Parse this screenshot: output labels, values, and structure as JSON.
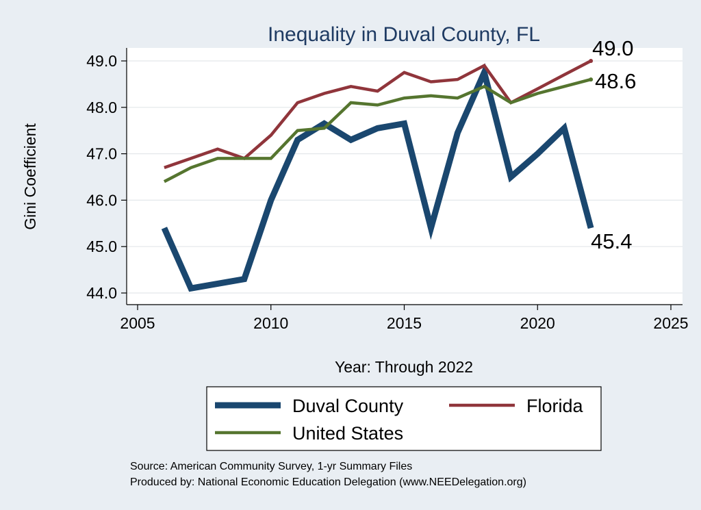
{
  "chart_data": {
    "type": "line",
    "title": "Inequality in Duval County, FL",
    "xlabel": "Year: Through 2022",
    "ylabel": "Gini Coefficient",
    "xlim": [
      2005,
      2025
    ],
    "ylim": [
      44.0,
      49.0
    ],
    "xticks": [
      "2005",
      "2010",
      "2015",
      "2020",
      "2025"
    ],
    "yticks": [
      "44.0",
      "45.0",
      "46.0",
      "47.0",
      "48.0",
      "49.0"
    ],
    "x": [
      2006,
      2007,
      2008,
      2009,
      2010,
      2011,
      2012,
      2013,
      2014,
      2015,
      2016,
      2017,
      2018,
      2019,
      2020,
      2021,
      2022
    ],
    "series": [
      {
        "name": "Duval County",
        "color": "#1a476f",
        "values": [
          45.4,
          44.1,
          44.2,
          44.3,
          46.0,
          47.3,
          47.65,
          47.3,
          47.55,
          47.65,
          45.4,
          47.45,
          48.75,
          46.5,
          47.0,
          47.55,
          45.4
        ],
        "end_label": "45.4"
      },
      {
        "name": "Florida",
        "color": "#90353b",
        "values": [
          46.7,
          46.9,
          47.1,
          46.9,
          47.4,
          48.1,
          48.3,
          48.45,
          48.35,
          48.75,
          48.55,
          48.6,
          48.9,
          48.1,
          48.4,
          48.7,
          49.0
        ],
        "end_label": "49.0"
      },
      {
        "name": "United States",
        "color": "#55752f",
        "values": [
          46.4,
          46.7,
          46.9,
          46.9,
          46.9,
          47.5,
          47.55,
          48.1,
          48.05,
          48.2,
          48.25,
          48.2,
          48.45,
          48.1,
          48.3,
          48.45,
          48.6
        ],
        "end_label": "48.6"
      }
    ],
    "legend": {
      "placement": "bottom"
    }
  },
  "source": {
    "line1": "Source: American Community Survey, 1-yr Summary Files",
    "line2": "Produced by: National Economic Education Delegation (www.NEEDelegation.org)"
  }
}
